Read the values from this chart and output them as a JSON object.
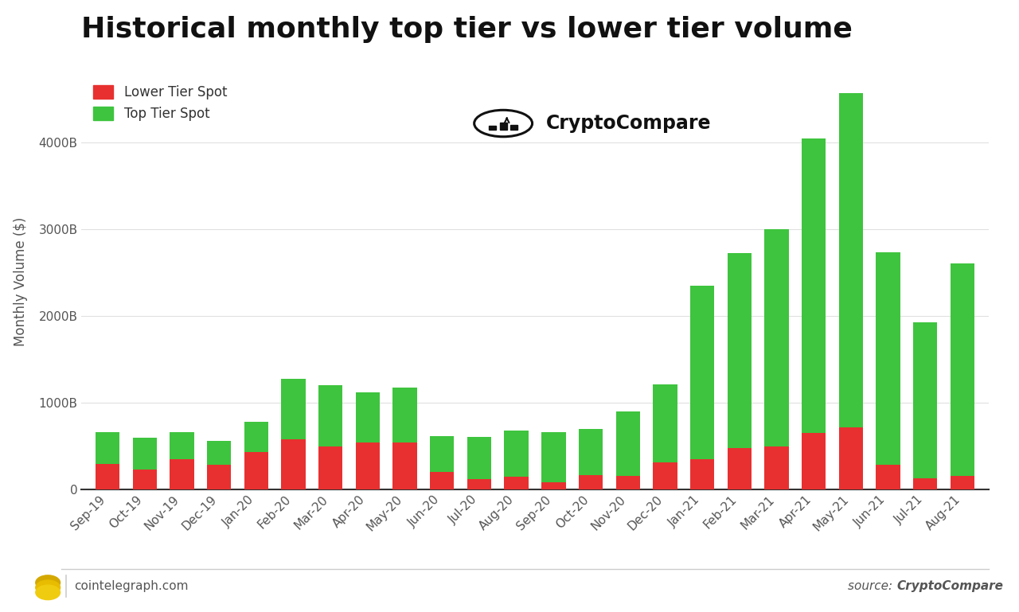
{
  "title": "Historical monthly top tier vs lower tier volume",
  "ylabel": "Monthly Volume ($)",
  "background_color": "#ffffff",
  "categories": [
    "Sep-19",
    "Oct-19",
    "Nov-19",
    "Dec-19",
    "Jan-20",
    "Feb-20",
    "Mar-20",
    "Apr-20",
    "May-20",
    "Jun-20",
    "Jul-20",
    "Aug-20",
    "Sep-20",
    "Oct-20",
    "Nov-20",
    "Dec-20",
    "Jan-21",
    "Feb-21",
    "Mar-21",
    "Apr-21",
    "May-21",
    "Jun-21",
    "Jul-21",
    "Aug-21"
  ],
  "lower_tier": [
    300,
    230,
    350,
    290,
    430,
    580,
    500,
    540,
    540,
    200,
    120,
    150,
    80,
    170,
    160,
    310,
    350,
    480,
    500,
    650,
    720,
    290,
    130,
    160
  ],
  "top_tier": [
    360,
    370,
    310,
    270,
    350,
    700,
    700,
    580,
    640,
    420,
    490,
    530,
    580,
    530,
    740,
    900,
    2000,
    2250,
    2500,
    3400,
    3850,
    2450,
    1800,
    2450
  ],
  "lower_color": "#e83030",
  "top_color": "#3ec43e",
  "lower_label": "Lower Tier Spot",
  "top_label": "Top Tier Spot",
  "yticks": [
    0,
    1000,
    2000,
    3000,
    4000
  ],
  "ytick_labels": [
    "0",
    "1000B",
    "2000B",
    "3000B",
    "4000B"
  ],
  "ylim": [
    0,
    4800
  ],
  "title_fontsize": 26,
  "axis_fontsize": 12,
  "tick_fontsize": 11,
  "legend_fontsize": 12,
  "footer_left": "cointelegraph.com",
  "footer_right": "CryptoCompare",
  "footer_right_prefix": "source: "
}
